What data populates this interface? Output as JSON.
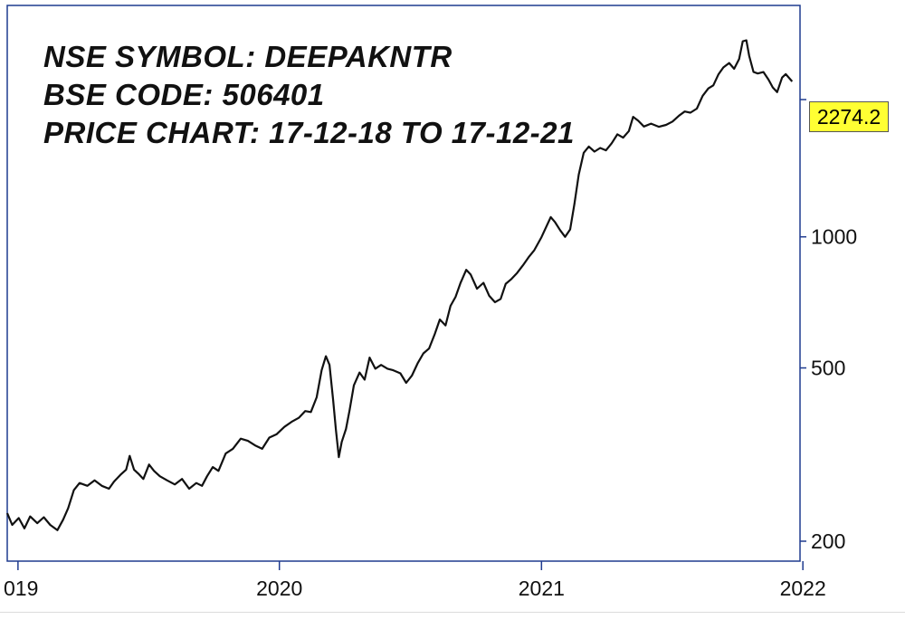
{
  "chart_data": {
    "type": "line",
    "title_lines": [
      "NSE SYMBOL: DEEPAKNTR",
      "BSE CODE: 506401",
      "PRICE CHART: 17-12-18 TO 17-12-21"
    ],
    "y_scale": "log",
    "ylim": [
      180,
      3400
    ],
    "xlim": [
      "2018-12-17",
      "2021-12-28"
    ],
    "y_ticks": [
      200,
      500,
      1000
    ],
    "y_tick_labels": [
      "200",
      "500",
      "1000"
    ],
    "x_ticks": [
      "2019-01-01",
      "2020-01-01",
      "2021-01-01",
      "2022-01-01"
    ],
    "x_tick_labels": [
      "019",
      "2020",
      "2021",
      "2022"
    ],
    "last_price_label": "2274.2",
    "grid": false,
    "colors": {
      "line": "#111111",
      "axis": "#1f3b8f",
      "badge": "#ffff33"
    },
    "series": [
      {
        "points": [
          [
            "2018-12-17",
            232
          ],
          [
            "2018-12-24",
            218
          ],
          [
            "2019-01-02",
            226
          ],
          [
            "2019-01-10",
            214
          ],
          [
            "2019-01-18",
            228
          ],
          [
            "2019-01-28",
            220
          ],
          [
            "2019-02-06",
            227
          ],
          [
            "2019-02-15",
            218
          ],
          [
            "2019-02-25",
            212
          ],
          [
            "2019-03-05",
            224
          ],
          [
            "2019-03-12",
            238
          ],
          [
            "2019-03-20",
            262
          ],
          [
            "2019-03-28",
            272
          ],
          [
            "2019-04-08",
            268
          ],
          [
            "2019-04-18",
            276
          ],
          [
            "2019-04-28",
            268
          ],
          [
            "2019-05-08",
            264
          ],
          [
            "2019-05-15",
            274
          ],
          [
            "2019-05-24",
            284
          ],
          [
            "2019-06-01",
            292
          ],
          [
            "2019-06-06",
            314
          ],
          [
            "2019-06-12",
            292
          ],
          [
            "2019-06-18",
            286
          ],
          [
            "2019-06-25",
            278
          ],
          [
            "2019-07-03",
            300
          ],
          [
            "2019-07-10",
            290
          ],
          [
            "2019-07-18",
            282
          ],
          [
            "2019-07-28",
            276
          ],
          [
            "2019-08-08",
            270
          ],
          [
            "2019-08-18",
            278
          ],
          [
            "2019-08-28",
            264
          ],
          [
            "2019-09-07",
            272
          ],
          [
            "2019-09-15",
            268
          ],
          [
            "2019-09-22",
            282
          ],
          [
            "2019-09-30",
            296
          ],
          [
            "2019-10-08",
            290
          ],
          [
            "2019-10-18",
            318
          ],
          [
            "2019-10-28",
            326
          ],
          [
            "2019-11-08",
            344
          ],
          [
            "2019-11-18",
            340
          ],
          [
            "2019-11-28",
            332
          ],
          [
            "2019-12-08",
            326
          ],
          [
            "2019-12-18",
            346
          ],
          [
            "2019-12-28",
            352
          ],
          [
            "2020-01-08",
            366
          ],
          [
            "2020-01-18",
            376
          ],
          [
            "2020-01-28",
            384
          ],
          [
            "2020-02-06",
            398
          ],
          [
            "2020-02-14",
            396
          ],
          [
            "2020-02-22",
            428
          ],
          [
            "2020-02-29",
            494
          ],
          [
            "2020-03-06",
            532
          ],
          [
            "2020-03-11",
            508
          ],
          [
            "2020-03-16",
            422
          ],
          [
            "2020-03-20",
            360
          ],
          [
            "2020-03-24",
            312
          ],
          [
            "2020-03-28",
            338
          ],
          [
            "2020-04-03",
            362
          ],
          [
            "2020-04-08",
            400
          ],
          [
            "2020-04-14",
            456
          ],
          [
            "2020-04-22",
            488
          ],
          [
            "2020-04-29",
            470
          ],
          [
            "2020-05-06",
            528
          ],
          [
            "2020-05-14",
            498
          ],
          [
            "2020-05-22",
            508
          ],
          [
            "2020-05-31",
            498
          ],
          [
            "2020-06-08",
            494
          ],
          [
            "2020-06-18",
            486
          ],
          [
            "2020-06-26",
            462
          ],
          [
            "2020-07-04",
            480
          ],
          [
            "2020-07-12",
            512
          ],
          [
            "2020-07-20",
            540
          ],
          [
            "2020-07-28",
            554
          ],
          [
            "2020-08-05",
            598
          ],
          [
            "2020-08-12",
            646
          ],
          [
            "2020-08-20",
            626
          ],
          [
            "2020-08-27",
            694
          ],
          [
            "2020-09-03",
            728
          ],
          [
            "2020-09-10",
            784
          ],
          [
            "2020-09-18",
            840
          ],
          [
            "2020-09-24",
            820
          ],
          [
            "2020-10-03",
            760
          ],
          [
            "2020-10-12",
            784
          ],
          [
            "2020-10-20",
            732
          ],
          [
            "2020-10-28",
            708
          ],
          [
            "2020-11-05",
            720
          ],
          [
            "2020-11-12",
            780
          ],
          [
            "2020-11-20",
            800
          ],
          [
            "2020-11-28",
            826
          ],
          [
            "2020-12-06",
            860
          ],
          [
            "2020-12-14",
            898
          ],
          [
            "2020-12-22",
            932
          ],
          [
            "2021-01-01",
            998
          ],
          [
            "2021-01-08",
            1058
          ],
          [
            "2021-01-14",
            1110
          ],
          [
            "2021-01-20",
            1080
          ],
          [
            "2021-01-27",
            1036
          ],
          [
            "2021-02-03",
            1000
          ],
          [
            "2021-02-10",
            1040
          ],
          [
            "2021-02-16",
            1190
          ],
          [
            "2021-02-22",
            1390
          ],
          [
            "2021-03-01",
            1560
          ],
          [
            "2021-03-08",
            1612
          ],
          [
            "2021-03-16",
            1570
          ],
          [
            "2021-03-24",
            1600
          ],
          [
            "2021-04-01",
            1580
          ],
          [
            "2021-04-09",
            1640
          ],
          [
            "2021-04-17",
            1720
          ],
          [
            "2021-04-25",
            1690
          ],
          [
            "2021-05-03",
            1750
          ],
          [
            "2021-05-09",
            1886
          ],
          [
            "2021-05-16",
            1848
          ],
          [
            "2021-05-24",
            1792
          ],
          [
            "2021-06-03",
            1820
          ],
          [
            "2021-06-14",
            1790
          ],
          [
            "2021-06-24",
            1808
          ],
          [
            "2021-07-03",
            1840
          ],
          [
            "2021-07-12",
            1898
          ],
          [
            "2021-07-20",
            1940
          ],
          [
            "2021-07-28",
            1928
          ],
          [
            "2021-08-06",
            1970
          ],
          [
            "2021-08-14",
            2108
          ],
          [
            "2021-08-22",
            2192
          ],
          [
            "2021-08-29",
            2228
          ],
          [
            "2021-09-05",
            2360
          ],
          [
            "2021-09-12",
            2450
          ],
          [
            "2021-09-20",
            2508
          ],
          [
            "2021-09-27",
            2432
          ],
          [
            "2021-10-04",
            2560
          ],
          [
            "2021-10-09",
            2812
          ],
          [
            "2021-10-14",
            2828
          ],
          [
            "2021-10-18",
            2606
          ],
          [
            "2021-10-24",
            2392
          ],
          [
            "2021-10-30",
            2372
          ],
          [
            "2021-11-07",
            2390
          ],
          [
            "2021-11-14",
            2296
          ],
          [
            "2021-11-20",
            2204
          ],
          [
            "2021-11-26",
            2150
          ],
          [
            "2021-12-03",
            2322
          ],
          [
            "2021-12-08",
            2364
          ],
          [
            "2021-12-17",
            2274
          ]
        ]
      }
    ]
  }
}
